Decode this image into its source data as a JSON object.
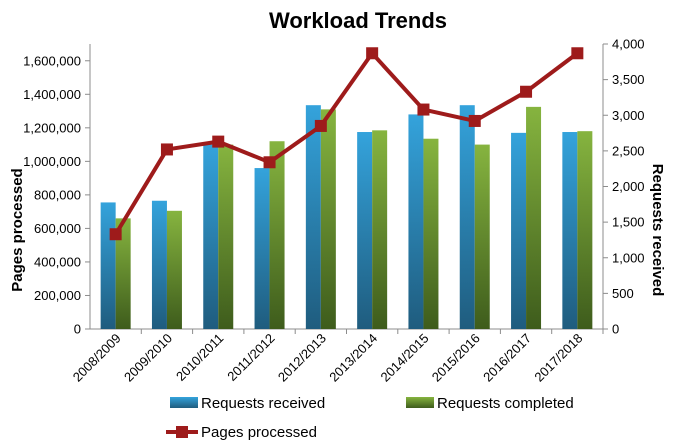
{
  "chart_data": {
    "type": "bar",
    "title": "Workload Trends",
    "ylabel_left": "Pages processed",
    "ylabel_right": "Requests received",
    "categories": [
      "2008/2009",
      "2009/2010",
      "2010/2011",
      "2011/2012",
      "2012/2013",
      "2013/2014",
      "2014/2015",
      "2015/2016",
      "2016/2017",
      "2017/2018"
    ],
    "ylim_left": [
      0,
      1700000
    ],
    "ylim_right": [
      0,
      4000
    ],
    "left_ticks": [
      "0",
      "200,000",
      "400,000",
      "600,000",
      "800,000",
      "1,000,000",
      "1,200,000",
      "1,400,000",
      "1,600,000"
    ],
    "right_ticks": [
      "0",
      "500",
      "1,000",
      "1,500",
      "2,000",
      "2,500",
      "3,000",
      "3,500",
      "4,000"
    ],
    "series": [
      {
        "name": "Requests received",
        "type": "bar",
        "axis": "left",
        "color": "#2E8BC0",
        "values": [
          755000,
          765000,
          1100000,
          960000,
          1335000,
          1175000,
          1280000,
          1335000,
          1170000,
          1175000
        ]
      },
      {
        "name": "Requests completed",
        "type": "bar",
        "axis": "left",
        "color": "#77A33A",
        "values": [
          660000,
          705000,
          1100000,
          1120000,
          1310000,
          1185000,
          1135000,
          1100000,
          1325000,
          1180000
        ]
      },
      {
        "name": "Pages processed",
        "type": "line",
        "axis": "right",
        "color": "#A01C1C",
        "values": [
          1330,
          2520,
          2630,
          2340,
          2850,
          3870,
          3080,
          2920,
          3330,
          3870
        ]
      }
    ],
    "grid": false,
    "legend_position": "bottom"
  }
}
